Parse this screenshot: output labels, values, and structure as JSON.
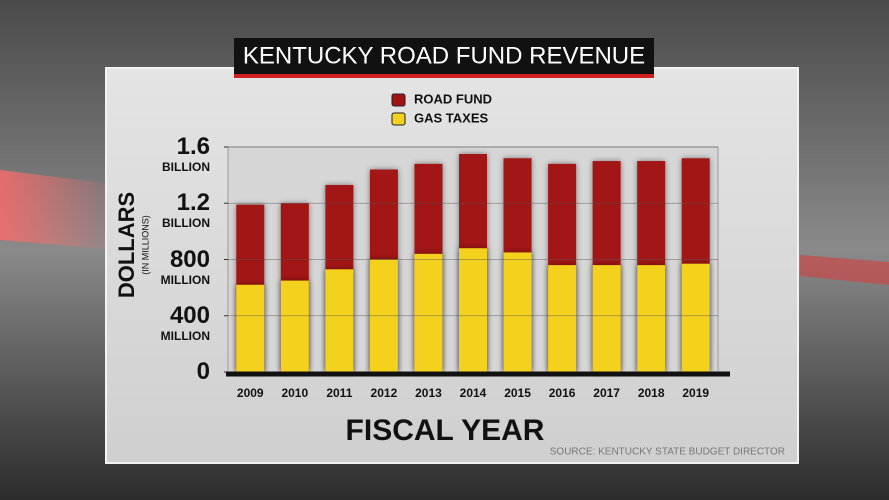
{
  "chart_data": {
    "type": "bar",
    "barmode": "overlay",
    "title": "KENTUCKY ROAD FUND REVENUE",
    "y_label": "DOLLARS",
    "y_sublabel": "(IN MILLIONS)",
    "x_label": "FISCAL YEAR",
    "source": "SOURCE: KENTUCKY STATE BUDGET DIRECTOR",
    "categories": [
      "2009",
      "2010",
      "2011",
      "2012",
      "2013",
      "2014",
      "2015",
      "2016",
      "2017",
      "2018",
      "2019"
    ],
    "series": [
      {
        "name": "ROAD FUND",
        "color": "#a31212",
        "values": [
          1190,
          1200,
          1330,
          1440,
          1480,
          1550,
          1520,
          1480,
          1500,
          1500,
          1520
        ]
      },
      {
        "name": "GAS TAXES",
        "color": "#f4d11c",
        "values": [
          620,
          650,
          730,
          800,
          840,
          880,
          850,
          760,
          760,
          760,
          770
        ]
      }
    ],
    "ylim": [
      0,
      1600
    ],
    "yticks": [
      0,
      {
        "value": 400,
        "label": "400 MILLION"
      },
      {
        "value": 800,
        "label": "800 MILLION"
      },
      {
        "value": 1200,
        "label": "1.2 BILLION"
      },
      {
        "value": 1600,
        "label": "1.6 BILLION"
      }
    ],
    "grid": true,
    "legend": "top"
  }
}
